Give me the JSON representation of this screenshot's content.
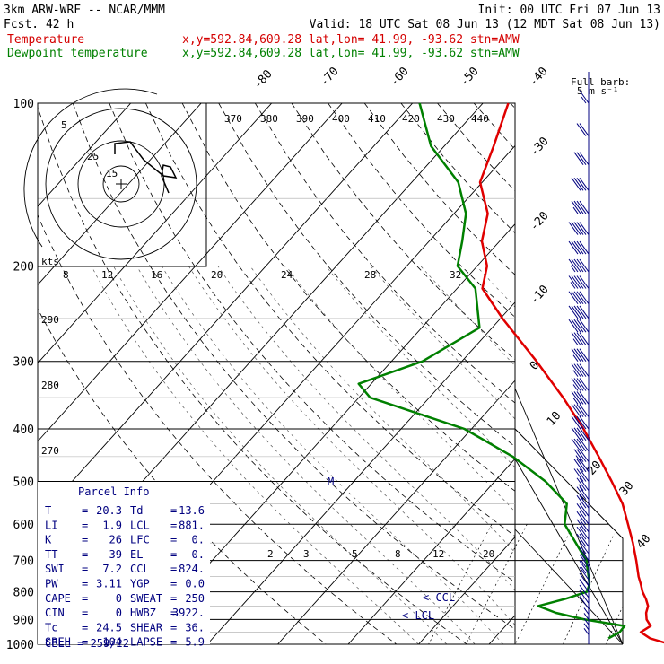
{
  "header": {
    "model": "3km ARW-WRF -- NCAR/MMM",
    "init": "Init: 00 UTC Fri 07 Jun 13",
    "fcst": "Fcst.   42 h",
    "valid": "Valid: 18 UTC Sat 08 Jun 13 (12 MDT Sat 08 Jun 13)",
    "temp_label": "Temperature",
    "dew_label": "Dewpoint temperature",
    "temp_loc": "x,y=592.84,609.28   lat,lon= 41.99, -93.62  stn=AMW",
    "dew_loc": "x,y=592.84,609.28   lat,lon= 41.99, -93.62  stn=AMW",
    "barb_title": "Full barb:",
    "barb_unit": "5 m s⁻¹"
  },
  "colors": {
    "temperature": "#e00000",
    "dewpoint": "#008000",
    "wind": "#000080",
    "grid": "#000000"
  },
  "chart_data": {
    "type": "line",
    "p_top": 100,
    "p_bottom": 1000,
    "pressure_labels": [
      "100",
      "200",
      "300",
      "400",
      "500",
      "600",
      "700",
      "800",
      "900",
      "1000"
    ],
    "pressure_levels": [
      100,
      200,
      300,
      400,
      500,
      600,
      700,
      800,
      900,
      1000
    ],
    "isotherm_labels": [
      "-80",
      "-70",
      "-60",
      "-50",
      "-40",
      "-30",
      "-20",
      "-10",
      "0",
      "10",
      "20",
      "30",
      "40"
    ],
    "isotherm_values": [
      -80,
      -70,
      -60,
      -50,
      -40,
      -30,
      -20,
      -10,
      0,
      10,
      20,
      30,
      40
    ],
    "theta_e_labels": [
      "370",
      "380",
      "390",
      "400",
      "410",
      "420",
      "430",
      "440"
    ],
    "theta_labels": [
      "290",
      "280",
      "270"
    ],
    "mixing_ratio_labels": [
      "2",
      "3",
      "5",
      "8",
      "12",
      "20"
    ],
    "hodograph": {
      "kts_label": "kts",
      "speed_labels": [
        "8",
        "12",
        "16",
        "20",
        "24",
        "28",
        "32"
      ],
      "ring_labels": [
        "5",
        "25",
        "15"
      ]
    },
    "temperature": {
      "name": "Temperature",
      "p": [
        1000,
        975,
        950,
        925,
        900,
        875,
        850,
        825,
        800,
        775,
        750,
        700,
        650,
        600,
        550,
        500,
        450,
        400,
        350,
        300,
        250,
        220,
        200,
        180,
        160,
        140,
        120,
        100
      ],
      "t": [
        25.7,
        22.1,
        20.0,
        20.6,
        19.2,
        18.3,
        17.7,
        16.5,
        15.1,
        13.9,
        12.6,
        10.2,
        7.5,
        4.4,
        1.0,
        -3.4,
        -8.4,
        -14.1,
        -21.0,
        -29.4,
        -39.7,
        -46.4,
        -48.6,
        -52.5,
        -55.2,
        -60.3,
        -63.0,
        -66.4
      ]
    },
    "dewpoint": {
      "name": "Dewpoint temperature",
      "p": [
        975,
        950,
        925,
        900,
        875,
        850,
        825,
        800,
        775,
        750,
        700,
        650,
        600,
        550,
        500,
        450,
        400,
        350,
        330,
        300,
        260,
        220,
        200,
        180,
        160,
        140,
        120,
        100
      ],
      "td": [
        16.2,
        17.0,
        16.9,
        10.4,
        5.5,
        2.1,
        5.0,
        7.2,
        6.6,
        5.5,
        3.1,
        -0.6,
        -4.6,
        -6.9,
        -12.8,
        -20.6,
        -31.0,
        -48.4,
        -51.8,
        -45.6,
        -41.8,
        -47.4,
        -52.8,
        -55.3,
        -58.3,
        -63.4,
        -71.9,
        -79.0
      ]
    },
    "annotations": {
      "ccl": "<-CCL",
      "lcl": "<-LCL",
      "m": "M"
    },
    "wind_barbs": {
      "full_barb_ms": 5,
      "p": [
        100,
        115,
        130,
        145,
        160,
        175,
        190,
        205,
        220,
        235,
        250,
        265,
        280,
        300,
        320,
        340,
        360,
        380,
        400,
        420,
        440,
        460,
        480,
        500,
        520,
        540,
        560,
        580,
        600,
        620,
        640,
        660,
        680,
        700,
        720,
        740,
        760,
        780,
        800,
        820,
        840,
        860,
        880,
        900,
        920,
        940,
        960,
        980,
        1000
      ],
      "spd_ms": [
        8,
        12,
        16,
        20,
        24,
        26,
        27,
        28,
        28,
        27,
        26,
        25,
        24,
        24,
        24,
        24,
        23,
        22,
        21,
        21,
        20,
        19,
        17,
        15,
        14,
        13,
        12,
        12,
        11,
        11,
        10,
        10,
        9,
        9,
        8,
        8,
        7,
        6,
        6,
        6,
        5,
        5,
        4,
        4,
        3,
        3,
        3,
        2,
        2
      ]
    },
    "skewt_axis_labels": [
      "30",
      "40"
    ]
  },
  "parcel_info": {
    "title": "Parcel Info",
    "rows": [
      {
        "l1": "T",
        "v1": "20.3",
        "l2": "Td",
        "v2": "13.6"
      },
      {
        "l1": "LI",
        "v1": "1.9",
        "l2": "LCL",
        "v2": "881."
      },
      {
        "l1": "K",
        "v1": "26",
        "l2": "LFC",
        "v2": "0."
      },
      {
        "l1": "TT",
        "v1": "39",
        "l2": "EL",
        "v2": "0."
      },
      {
        "l1": "SWI",
        "v1": "7.2",
        "l2": "CCL",
        "v2": "824."
      },
      {
        "l1": "PW",
        "v1": "3.11",
        "l2": "YGP",
        "v2": "0.0"
      },
      {
        "l1": "CAPE",
        "v1": "0",
        "l2": "SWEAT",
        "v2": "250"
      },
      {
        "l1": "CIN",
        "v1": "0",
        "l2": "HWBZ",
        "v2": "3922."
      },
      {
        "l1": "Tc",
        "v1": "24.5",
        "l2": "SHEAR",
        "v2": "36."
      },
      {
        "l1": "SREH",
        "v1": "104",
        "l2": "LAPSE",
        "v2": "5.9"
      }
    ],
    "cell": "CELL = 259/22"
  }
}
